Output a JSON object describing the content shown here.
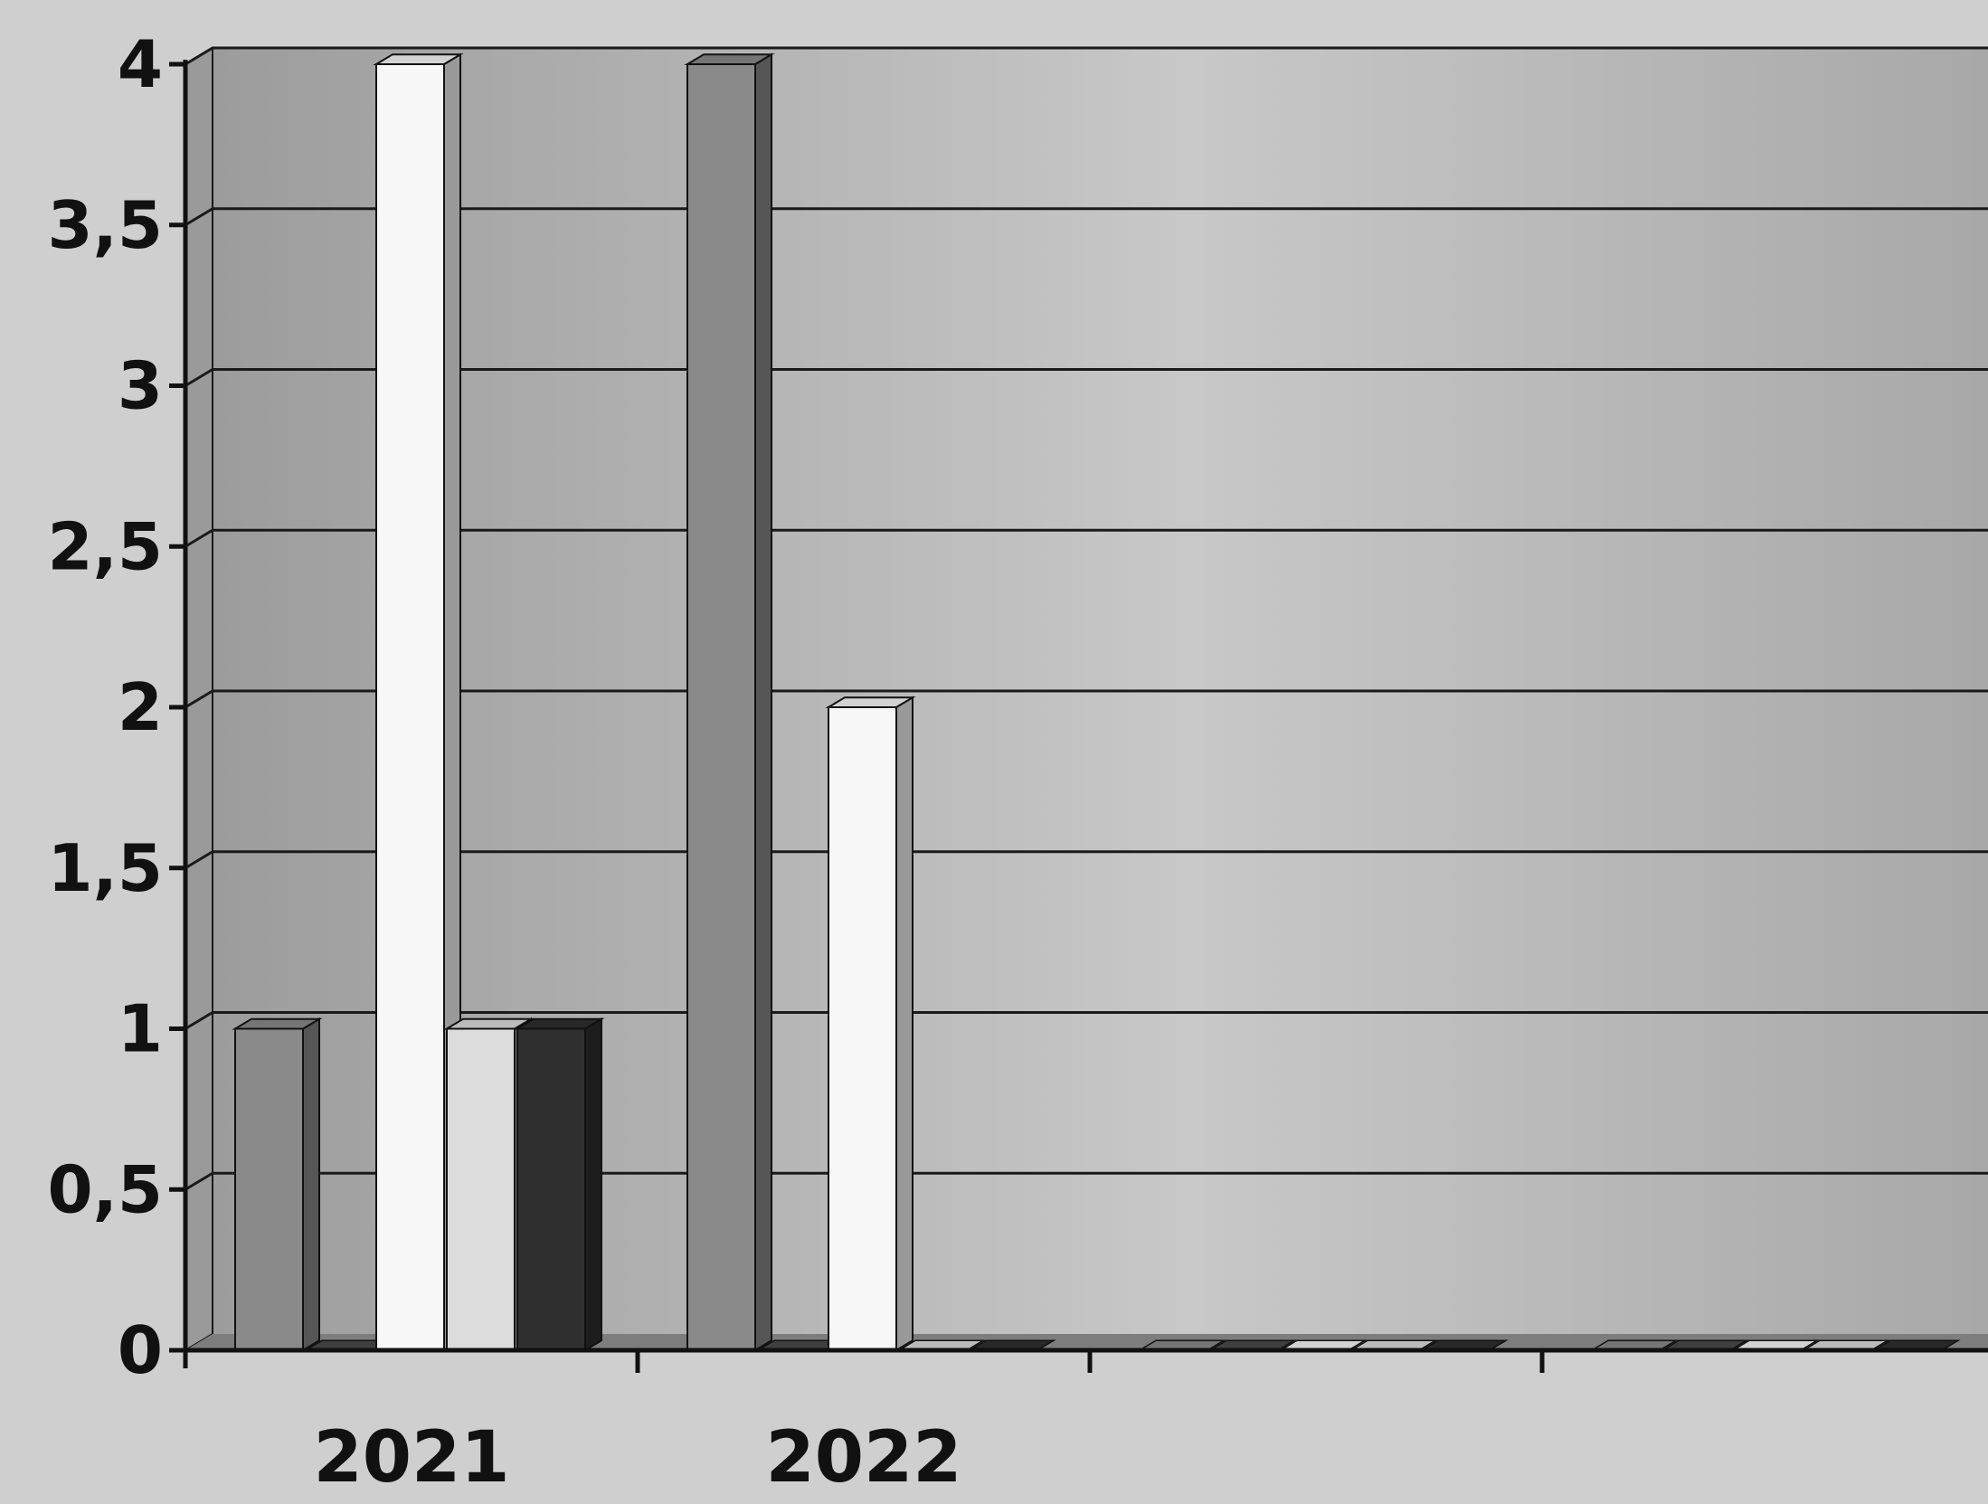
{
  "chart_data": {
    "type": "bar",
    "style": "3d-clustered-column",
    "categories": [
      "2021",
      "2022",
      "",
      "",
      ""
    ],
    "series": [
      {
        "values": [
          1,
          4,
          0,
          0,
          0
        ],
        "color": "#8a8a8a"
      },
      {
        "values": [
          0,
          0,
          0,
          0,
          0
        ],
        "color": "#4a4a4a"
      },
      {
        "values": [
          4,
          2,
          0,
          0,
          0
        ],
        "color": "#f7f7f7"
      },
      {
        "values": [
          1,
          0,
          0,
          0,
          0
        ],
        "color": "#dcdcdc"
      },
      {
        "values": [
          1,
          0,
          0,
          0,
          0
        ],
        "color": "#2f2f2f"
      }
    ],
    "yticks": [
      "0",
      "0,5",
      "1",
      "1,5",
      "2",
      "2,5",
      "3",
      "3,5",
      "4"
    ],
    "ylim": [
      0,
      4
    ],
    "grid": true,
    "legend": "none",
    "title": "",
    "xlabel": "",
    "ylabel": ""
  },
  "colors": {
    "wall": "#a9a9a9",
    "wall_light": "#c6c6c6",
    "side_wall": "#9a9a9a",
    "floor": "#7d7d7d",
    "grid": "#1a1a1a",
    "axis": "#111111"
  }
}
